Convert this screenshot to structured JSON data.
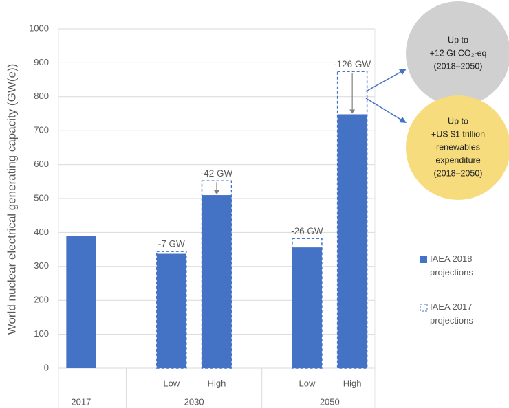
{
  "chart_data": {
    "type": "bar",
    "y_label": "World nuclear electrical generating capacity (GW(e))",
    "categories": [
      null,
      "Low",
      "High",
      "Low",
      "High"
    ],
    "groups": [
      {
        "label": "2017",
        "size": 1
      },
      {
        "label": "2030",
        "size": 2
      },
      {
        "label": "2050",
        "size": 2
      }
    ],
    "series": [
      {
        "name": "IAEA 2018 projections",
        "color": "#4472c4",
        "style": "solid",
        "values": [
          390,
          337,
          510,
          356,
          748
        ]
      },
      {
        "name": "IAEA 2017 projections",
        "color": "#4472c4",
        "style": "dashed",
        "values": [
          null,
          344,
          552,
          382,
          874
        ]
      }
    ],
    "change": {
      "values": [
        null,
        -7,
        -42,
        -26,
        -126
      ],
      "value_labels": [
        null,
        "-7 GW",
        "-42 GW",
        "-26 GW",
        "-126 GW"
      ]
    },
    "ylim": [
      0,
      1000
    ],
    "yticks": [
      0,
      100,
      200,
      300,
      400,
      500,
      600,
      700,
      800,
      900,
      1000
    ],
    "grid": true,
    "legend": "right",
    "callouts": [
      {
        "color": "#d0d0d0",
        "lines": [
          "Up to",
          "+12 Gt CO₂-eq",
          "(2018–2050)"
        ]
      },
      {
        "color": "#f6dc7c",
        "lines": [
          "Up to",
          "+US $1 trillion",
          "renewables",
          "expenditure",
          "(2018–2050)"
        ]
      }
    ]
  }
}
